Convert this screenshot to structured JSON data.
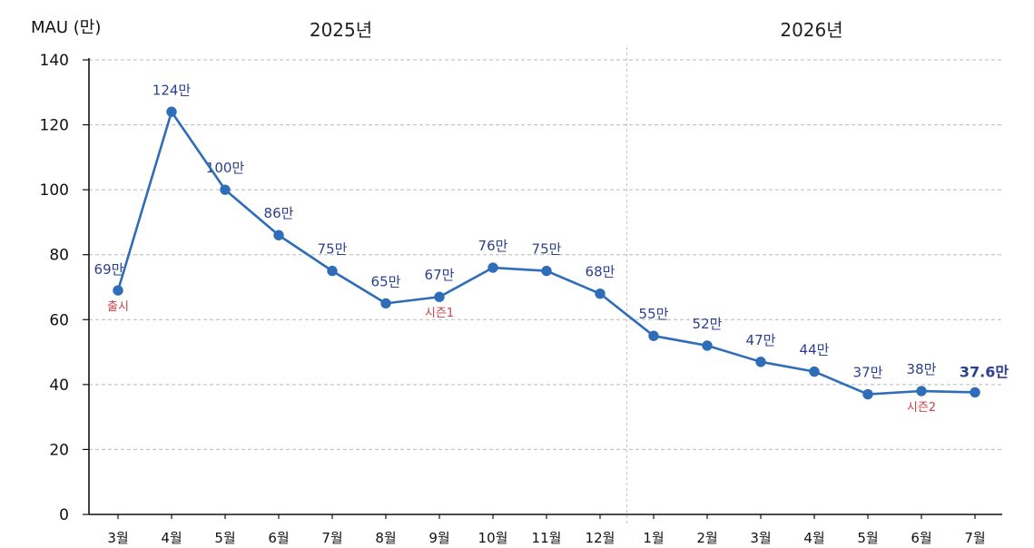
{
  "chart_data": {
    "type": "line",
    "ylabel": "MAU (만)",
    "ylim": [
      0,
      140
    ],
    "yticks": [
      "0",
      "20",
      "40",
      "60",
      "80",
      "100",
      "120",
      "140"
    ],
    "grid": true,
    "year_groups": [
      {
        "label": "2025년",
        "first_index": 0,
        "last_index": 9
      },
      {
        "label": "2026년",
        "first_index": 10,
        "last_index": 16
      }
    ],
    "categories": [
      "3월",
      "4월",
      "5월",
      "6월",
      "7월",
      "8월",
      "9월",
      "10월",
      "11월",
      "12월",
      "1월",
      "2월",
      "3월",
      "4월",
      "5월",
      "6월",
      "7월"
    ],
    "series": [
      {
        "values": [
          69,
          124,
          100,
          86,
          75,
          65,
          67,
          76,
          75,
          68,
          55,
          52,
          47,
          44,
          37,
          38,
          37.6
        ],
        "value_labels": [
          "69만",
          "124만",
          "100만",
          "86만",
          "75만",
          "65만",
          "67만",
          "76만",
          "75만",
          "68만",
          "55만",
          "52만",
          "47만",
          "44만",
          "37만",
          "38만",
          "37.6만"
        ],
        "color": "#2f6db8"
      }
    ],
    "annotations": [
      {
        "index": 0,
        "text": "출시"
      },
      {
        "index": 6,
        "text": "시즌1"
      },
      {
        "index": 15,
        "text": "시즌2"
      }
    ]
  }
}
